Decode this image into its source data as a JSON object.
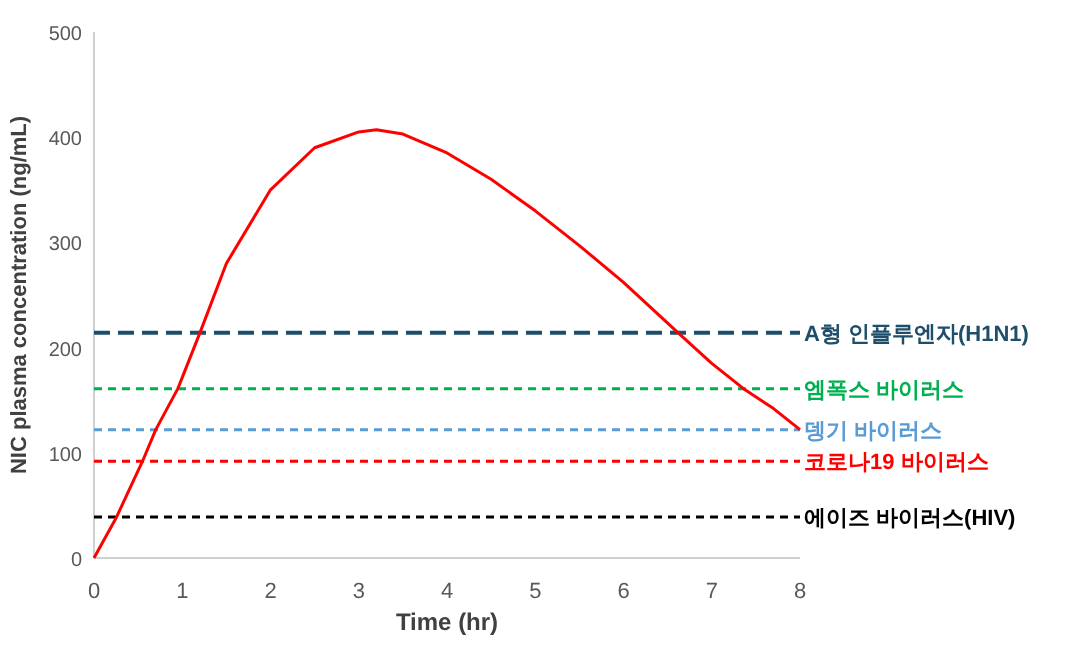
{
  "chart_data": {
    "type": "line",
    "xlabel": "Time (hr)",
    "ylabel": "NIC plasma concentration (ng/mL)",
    "xlim": [
      0,
      8
    ],
    "ylim": [
      0,
      500
    ],
    "xticks": [
      0,
      1,
      2,
      3,
      4,
      5,
      6,
      7,
      8
    ],
    "yticks": [
      0,
      100,
      200,
      300,
      400,
      500
    ],
    "grid": false,
    "marker": "none",
    "line_style": "solid",
    "series": [
      {
        "color": "#ff0000",
        "x": [
          0,
          0.25,
          0.55,
          0.7,
          0.95,
          1.2,
          1.5,
          2,
          2.5,
          3,
          3.2,
          3.5,
          4,
          4.5,
          5,
          5.5,
          6,
          6.62,
          7,
          7.36,
          7.7,
          8
        ],
        "values": [
          0,
          38,
          92,
          122,
          161,
          214,
          280,
          350,
          390,
          405,
          407,
          403,
          385,
          360,
          330,
          297,
          262,
          214,
          185,
          161,
          142,
          122
        ]
      }
    ],
    "ref_lines": [
      {
        "axis": "y",
        "value": 214,
        "label": "A형 인플루엔자(H1N1)",
        "color": "#1f4e6b",
        "line_style": "dashed"
      },
      {
        "axis": "y",
        "value": 161,
        "label": "엠폭스 바이러스",
        "color": "#00b050",
        "line_style": "dotted"
      },
      {
        "axis": "y",
        "value": 122,
        "label": "뎅기 바이러스",
        "color": "#5b9bd5",
        "line_style": "dotted"
      },
      {
        "axis": "y",
        "value": 92,
        "label": "코로나19 바이러스",
        "color": "#ff0000",
        "line_style": "dotted"
      },
      {
        "axis": "y",
        "value": 39,
        "label": "에이즈 바이러스(HIV)",
        "color": "#000000",
        "line_style": "dotted"
      }
    ]
  }
}
